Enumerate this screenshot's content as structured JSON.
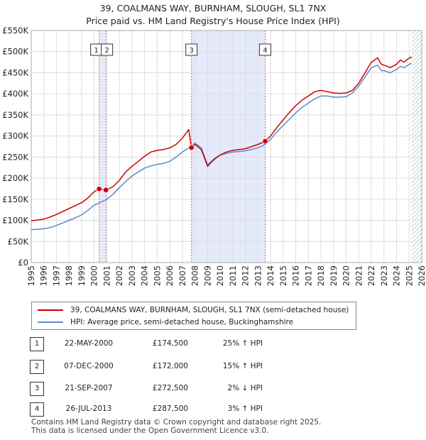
{
  "title_line1": "39, COALMANS WAY, BURNHAM, SLOUGH, SL1 7NX",
  "title_line2": "Price paid vs. HM Land Registry's House Price Index (HPI)",
  "chart_data": {
    "type": "line",
    "xlabel": "",
    "ylabel": "",
    "xlim": [
      1995,
      2026
    ],
    "ylim": [
      0,
      550000
    ],
    "y_ticks": [
      0,
      50000,
      100000,
      150000,
      200000,
      250000,
      300000,
      350000,
      400000,
      450000,
      500000,
      550000
    ],
    "y_tick_labels": [
      "£0",
      "£50K",
      "£100K",
      "£150K",
      "£200K",
      "£250K",
      "£300K",
      "£350K",
      "£400K",
      "£450K",
      "£500K",
      "£550K"
    ],
    "x_ticks": [
      1995,
      1996,
      1997,
      1998,
      1999,
      2000,
      2001,
      2002,
      2003,
      2004,
      2005,
      2006,
      2007,
      2008,
      2009,
      2010,
      2011,
      2012,
      2013,
      2014,
      2015,
      2016,
      2017,
      2018,
      2019,
      2020,
      2021,
      2022,
      2023,
      2024,
      2025,
      2026
    ],
    "x_tick_labels": [
      "1995",
      "1996",
      "1997",
      "1998",
      "1999",
      "2000",
      "2001",
      "2002",
      "2003",
      "2004",
      "2005",
      "2006",
      "2007",
      "2008",
      "2009",
      "2010",
      "2011",
      "2012",
      "2013",
      "2014",
      "2015",
      "2016",
      "2017",
      "2018",
      "2019",
      "2020",
      "2021",
      "2022",
      "2023",
      "2024",
      "2025",
      "2026"
    ],
    "grid": true,
    "shaded_ranges": [
      [
        2000.39,
        2000.93
      ],
      [
        2007.72,
        2013.57
      ]
    ],
    "future_hatch_from": 2025.2,
    "series": [
      {
        "name": "39, COALMANS WAY, BURNHAM, SLOUGH, SL1 7NX (semi-detached house)",
        "color": "#cc0000",
        "x": [
          1995.0,
          1995.5,
          1996.0,
          1996.5,
          1997.0,
          1997.5,
          1998.0,
          1998.5,
          1999.0,
          1999.5,
          2000.0,
          2000.39,
          2000.93,
          2001.5,
          2002.0,
          2002.5,
          2003.0,
          2003.5,
          2004.0,
          2004.5,
          2005.0,
          2005.5,
          2006.0,
          2006.5,
          2007.0,
          2007.5,
          2007.72,
          2008.0,
          2008.5,
          2009.0,
          2009.3,
          2009.6,
          2010.0,
          2010.5,
          2011.0,
          2011.5,
          2012.0,
          2012.5,
          2013.0,
          2013.57,
          2014.0,
          2014.5,
          2015.0,
          2015.5,
          2016.0,
          2016.5,
          2017.0,
          2017.5,
          2018.0,
          2018.5,
          2019.0,
          2019.5,
          2020.0,
          2020.5,
          2021.0,
          2021.5,
          2022.0,
          2022.5,
          2022.8,
          2023.0,
          2023.5,
          2024.0,
          2024.3,
          2024.6,
          2025.0,
          2025.2
        ],
        "y": [
          99000,
          101000,
          103000,
          108000,
          114000,
          121000,
          128000,
          135000,
          142000,
          153000,
          168000,
          174500,
          172000,
          180000,
          195000,
          215000,
          228000,
          240000,
          252000,
          262000,
          266000,
          268000,
          272000,
          280000,
          295000,
          315000,
          272500,
          280000,
          268000,
          228000,
          238000,
          246000,
          255000,
          262000,
          266000,
          268000,
          270000,
          275000,
          280000,
          287500,
          300000,
          320000,
          338000,
          356000,
          372000,
          385000,
          395000,
          405000,
          408000,
          405000,
          402000,
          401000,
          402000,
          408000,
          425000,
          450000,
          475000,
          485000,
          470000,
          468000,
          462000,
          470000,
          480000,
          475000,
          485000,
          487000
        ]
      },
      {
        "name": "HPI: Average price, semi-detached house, Buckinghamshire",
        "color": "#5b8ac9",
        "x": [
          1995.0,
          1995.5,
          1996.0,
          1996.5,
          1997.0,
          1997.5,
          1998.0,
          1998.5,
          1999.0,
          1999.5,
          2000.0,
          2000.5,
          2001.0,
          2001.5,
          2002.0,
          2002.5,
          2003.0,
          2003.5,
          2004.0,
          2004.5,
          2005.0,
          2005.5,
          2006.0,
          2006.5,
          2007.0,
          2007.5,
          2008.0,
          2008.5,
          2009.0,
          2009.3,
          2009.6,
          2010.0,
          2010.5,
          2011.0,
          2011.5,
          2012.0,
          2012.5,
          2013.0,
          2013.57,
          2014.0,
          2014.5,
          2015.0,
          2015.5,
          2016.0,
          2016.5,
          2017.0,
          2017.5,
          2018.0,
          2018.5,
          2019.0,
          2019.5,
          2020.0,
          2020.5,
          2021.0,
          2021.5,
          2022.0,
          2022.5,
          2022.8,
          2023.0,
          2023.5,
          2024.0,
          2024.3,
          2024.6,
          2025.0,
          2025.2
        ],
        "y": [
          78000,
          79000,
          80000,
          83000,
          88000,
          94000,
          100000,
          106000,
          113000,
          124000,
          136000,
          143000,
          150000,
          162000,
          178000,
          192000,
          205000,
          215000,
          224000,
          229000,
          233000,
          235000,
          240000,
          250000,
          262000,
          272000,
          283000,
          272000,
          232000,
          240000,
          248000,
          255000,
          259000,
          262000,
          263000,
          265000,
          268000,
          272000,
          280000,
          292000,
          310000,
          325000,
          340000,
          355000,
          368000,
          378000,
          388000,
          395000,
          395000,
          392000,
          392000,
          393000,
          402000,
          418000,
          440000,
          462000,
          468000,
          455000,
          455000,
          450000,
          458000,
          465000,
          462000,
          470000,
          472000
        ]
      }
    ],
    "markers": [
      {
        "label": "1",
        "x": 2000.39,
        "y": 174500
      },
      {
        "label": "2",
        "x": 2000.93,
        "y": 172000
      },
      {
        "label": "3",
        "x": 2007.72,
        "y": 272500
      },
      {
        "label": "4",
        "x": 2013.57,
        "y": 287500
      }
    ]
  },
  "legend": {
    "series1": "39, COALMANS WAY, BURNHAM, SLOUGH, SL1 7NX (semi-detached house)",
    "series2": "HPI: Average price, semi-detached house, Buckinghamshire",
    "series1_color": "#cc0000",
    "series2_color": "#5b8ac9"
  },
  "transactions": [
    {
      "num": "1",
      "date": "22-MAY-2000",
      "price": "£174,500",
      "hpi": "25% ↑ HPI"
    },
    {
      "num": "2",
      "date": "07-DEC-2000",
      "price": "£172,000",
      "hpi": "15% ↑ HPI"
    },
    {
      "num": "3",
      "date": "21-SEP-2007",
      "price": "£272,500",
      "hpi": "2% ↓ HPI"
    },
    {
      "num": "4",
      "date": "26-JUL-2013",
      "price": "£287,500",
      "hpi": "3% ↑ HPI"
    }
  ],
  "footer_line1": "Contains HM Land Registry data © Crown copyright and database right 2025.",
  "footer_line2": "This data is licensed under the Open Government Licence v3.0."
}
